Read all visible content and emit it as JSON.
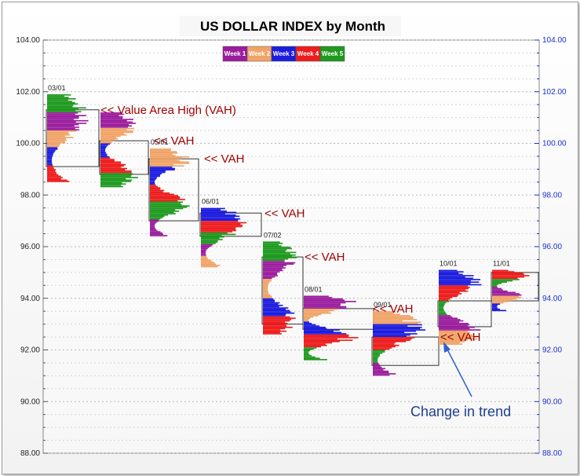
{
  "chart_data": {
    "type": "market-profile",
    "title": "US DOLLAR INDEX  by Month",
    "ylim": [
      88,
      104
    ],
    "yticks": [
      "88.00",
      "90.00",
      "92.00",
      "94.00",
      "96.00",
      "98.00",
      "100.00",
      "102.00",
      "104.00"
    ],
    "legend": {
      "placement": "top-center",
      "entries": [
        {
          "name": "Week 1",
          "color": "#9b1d9e"
        },
        {
          "name": "Week 2",
          "color": "#f0a468"
        },
        {
          "name": "Week 3",
          "color": "#1c1ce0"
        },
        {
          "name": "Week 4",
          "color": "#ee1c1c"
        },
        {
          "name": "Week 5",
          "color": "#1f9a1f"
        }
      ]
    },
    "months": [
      {
        "label": "03/01",
        "high": 101.9,
        "low": 98.5,
        "vah": 101.3,
        "val": 99.1
      },
      {
        "label": "",
        "high": 101.2,
        "low": 98.3,
        "vah": 100.1,
        "val": 98.8
      },
      {
        "label": "05/01",
        "high": 99.8,
        "low": 96.4,
        "vah": 99.4,
        "val": 97.0
      },
      {
        "label": "06/01",
        "high": 97.5,
        "low": 95.2,
        "vah": 97.3,
        "val": 96.4
      },
      {
        "label": "07/02",
        "high": 96.2,
        "low": 92.6,
        "vah": 95.6,
        "val": 93.0
      },
      {
        "label": "08/01",
        "high": 94.1,
        "low": 91.6,
        "vah": 93.6,
        "val": 92.8
      },
      {
        "label": "09/01",
        "high": 93.5,
        "low": 91.0,
        "vah": 92.5,
        "val": 91.4
      },
      {
        "label": "10/01",
        "high": 95.1,
        "low": 92.2,
        "vah": 93.9,
        "val": 92.9
      },
      {
        "label": "11/01",
        "high": 95.1,
        "low": 93.5,
        "vah": 95.0,
        "val": 93.9
      }
    ],
    "annotations": [
      {
        "text": "<< Value Area High (VAH)",
        "y": 101.3
      },
      {
        "text": "<< VAH",
        "y": 100.1
      },
      {
        "text": "<< VAH",
        "y": 99.4
      },
      {
        "text": "<< VAH",
        "y": 97.3
      },
      {
        "text": "<< VAH",
        "y": 95.6
      },
      {
        "text": "<< VAH",
        "y": 93.6
      },
      {
        "text": "<< VAH",
        "y": 92.5
      },
      {
        "text": "Change in trend",
        "y": 90.3
      }
    ],
    "grid": true
  }
}
